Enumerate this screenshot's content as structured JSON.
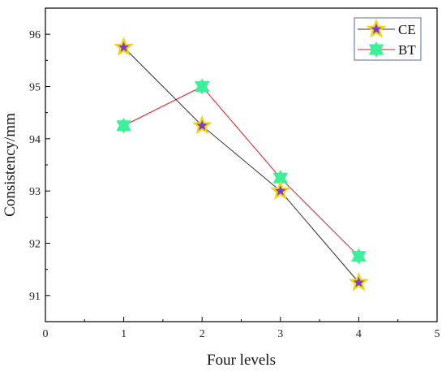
{
  "chart_data": {
    "type": "line",
    "title": "",
    "xlabel": "Four levels",
    "ylabel": "Consistency/mm",
    "xlim": [
      0,
      5
    ],
    "ylim": [
      90.5,
      96.5
    ],
    "xticks": [
      0,
      1,
      2,
      3,
      4,
      5
    ],
    "yticks": [
      91,
      92,
      93,
      94,
      95,
      96
    ],
    "grid": false,
    "legend_position": "top-right",
    "series": [
      {
        "name": "CE",
        "x": [
          1,
          2,
          3,
          4
        ],
        "values": [
          95.75,
          94.25,
          93.0,
          91.25
        ],
        "line_color": "#333333",
        "marker": "star",
        "marker_fill": "#7b3fc4",
        "marker_edge": "#f2d21a"
      },
      {
        "name": "BT",
        "x": [
          1,
          2,
          3,
          4
        ],
        "values": [
          94.25,
          95.0,
          93.25,
          91.75
        ],
        "line_color": "#e8141b",
        "marker": "triangle-star",
        "marker_fill": "#3cf09a",
        "marker_edge": "#3cf09a"
      }
    ]
  }
}
